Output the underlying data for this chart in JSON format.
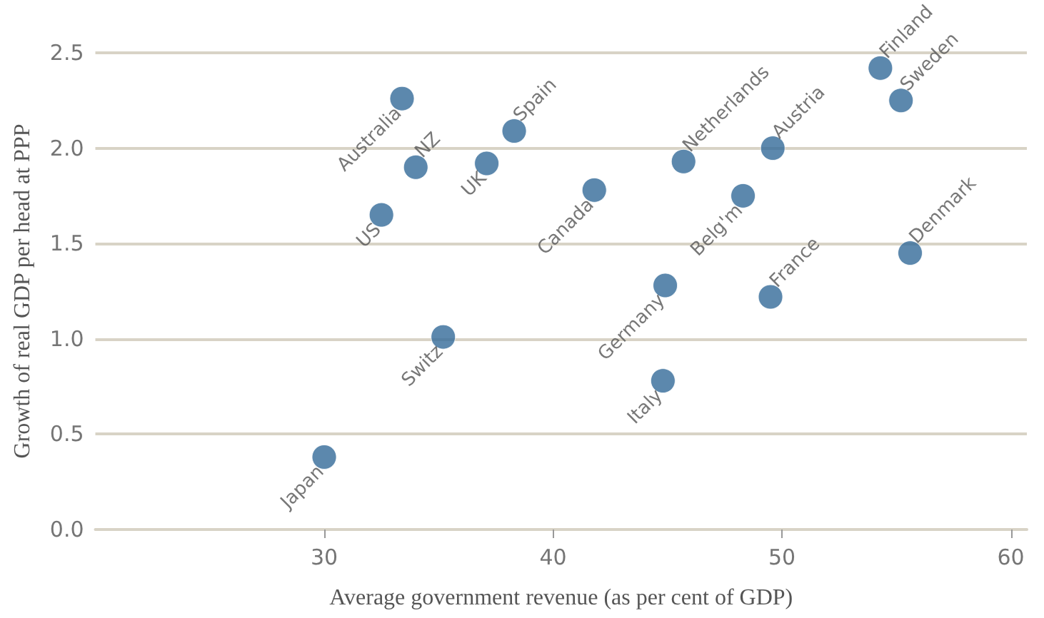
{
  "chart_data": {
    "type": "scatter",
    "xlabel": "Average government revenue (as per cent of GDP)",
    "ylabel": "Growth of real GDP per head at PPP",
    "x": [
      33.4,
      34.0,
      32.5,
      37.1,
      38.3,
      41.8,
      45.7,
      49.6,
      48.3,
      54.3,
      55.2,
      55.6,
      49.5,
      44.9,
      44.8,
      35.2,
      30.0
    ],
    "series": [
      {
        "color": "#336a98",
        "values": [
          2.26,
          1.9,
          1.65,
          1.92,
          2.09,
          1.78,
          1.93,
          2.0,
          1.75,
          2.42,
          2.25,
          1.45,
          1.22,
          1.28,
          0.78,
          1.01,
          0.38
        ]
      }
    ],
    "annotations": [
      {
        "text": "Australia",
        "x": 33.4,
        "y": 2.26
      },
      {
        "text": "NZ",
        "x": 34.0,
        "y": 1.9
      },
      {
        "text": "US",
        "x": 32.5,
        "y": 1.65
      },
      {
        "text": "UK",
        "x": 37.1,
        "y": 1.92
      },
      {
        "text": "Spain",
        "x": 38.3,
        "y": 2.09
      },
      {
        "text": "Canada",
        "x": 41.8,
        "y": 1.78
      },
      {
        "text": "Netherlands",
        "x": 45.7,
        "y": 1.93
      },
      {
        "text": "Austria",
        "x": 49.6,
        "y": 2.0
      },
      {
        "text": "Belg'm",
        "x": 48.3,
        "y": 1.75
      },
      {
        "text": "Finland",
        "x": 54.3,
        "y": 2.42
      },
      {
        "text": "Sweden",
        "x": 55.2,
        "y": 2.25
      },
      {
        "text": "Denmark",
        "x": 55.6,
        "y": 1.45
      },
      {
        "text": "France",
        "x": 49.5,
        "y": 1.22
      },
      {
        "text": "Germany",
        "x": 44.9,
        "y": 1.28
      },
      {
        "text": "Italy",
        "x": 44.8,
        "y": 0.78
      },
      {
        "text": "Switz",
        "x": 35.2,
        "y": 1.01
      },
      {
        "text": "Japan",
        "x": 30.0,
        "y": 0.38
      }
    ],
    "xlim": [
      20,
      60.7
    ],
    "xticks": [
      30,
      40,
      50,
      60
    ],
    "ylim": [
      0,
      2.5
    ],
    "yticks": [
      {
        "value": 0,
        "label": "0.0"
      },
      0.5,
      {
        "value": 1,
        "label": "1.0"
      },
      1.5,
      {
        "value": 2,
        "label": "2.0"
      },
      2.5
    ],
    "grid": "y",
    "marker": "circle"
  }
}
